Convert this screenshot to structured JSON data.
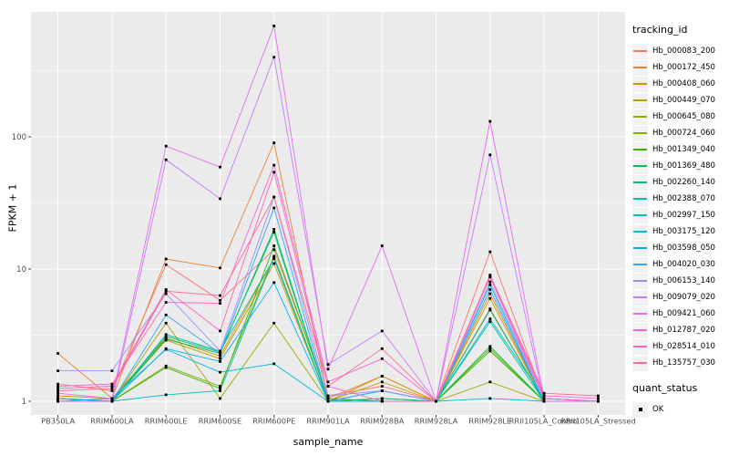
{
  "chart_data": {
    "type": "line",
    "title": "",
    "xlabel": "sample_name",
    "ylabel": "FPKM + 1",
    "y_scale": "log10",
    "y_ticks": [
      1,
      10,
      100
    ],
    "y_tick_labels": [
      "1",
      "10",
      "100"
    ],
    "y_minor_ticks": [
      3.1623,
      31.623,
      316.23
    ],
    "ylim": [
      0.8,
      868
    ],
    "grid": "on",
    "legend_position": "right",
    "point_marker": "square",
    "point_color": "#000000",
    "categories": [
      "PB350LA",
      "RRIM600LA",
      "RRIM600LE",
      "RRIM600SE",
      "RRIM600PE",
      "RRIM901LA",
      "RRIM928BA",
      "RRIM928LA",
      "RRIM928LE",
      "RRII105LA_Control",
      "RRII105LA_Stressed"
    ],
    "series": [
      {
        "name": "Hb_000083_200",
        "color": "#F8766D",
        "values": [
          1.35,
          1.2,
          10.8,
          5.8,
          14,
          1.1,
          1.3,
          1.0,
          13.5,
          1.05,
          1.0
        ]
      },
      {
        "name": "Hb_000172_450",
        "color": "#EA8331",
        "values": [
          2.3,
          1.05,
          11.9,
          10.2,
          90,
          1.05,
          1.55,
          1.0,
          5.0,
          1.0,
          1.0
        ]
      },
      {
        "name": "Hb_000408_060",
        "color": "#D89000",
        "values": [
          1.1,
          1.05,
          3.0,
          2.2,
          12,
          1.0,
          1.55,
          1.0,
          6.5,
          1.0,
          1.0
        ]
      },
      {
        "name": "Hb_000449_070",
        "color": "#C09B00",
        "values": [
          1.05,
          1.0,
          2.9,
          2.1,
          11,
          1.0,
          1.4,
          1.0,
          6.0,
          1.0,
          1.0
        ]
      },
      {
        "name": "Hb_000645_080",
        "color": "#A3A500",
        "values": [
          1.0,
          1.0,
          3.9,
          1.05,
          3.9,
          1.0,
          1.0,
          1.0,
          1.4,
          1.0,
          1.0
        ]
      },
      {
        "name": "Hb_000724_060",
        "color": "#7CAE00",
        "values": [
          1.0,
          1.0,
          1.85,
          1.3,
          12.5,
          1.0,
          1.0,
          1.0,
          2.5,
          1.0,
          1.0
        ]
      },
      {
        "name": "Hb_001349_040",
        "color": "#39B600",
        "values": [
          1.0,
          1.0,
          1.8,
          1.25,
          15,
          1.05,
          1.0,
          1.0,
          2.4,
          1.0,
          1.0
        ]
      },
      {
        "name": "Hb_001369_480",
        "color": "#00BB4E",
        "values": [
          1.05,
          1.0,
          2.95,
          2.3,
          20,
          1.0,
          1.05,
          1.0,
          2.6,
          1.0,
          1.0
        ]
      },
      {
        "name": "Hb_002260_140",
        "color": "#00BF7D",
        "values": [
          1.0,
          1.0,
          3.1,
          2.35,
          19,
          1.0,
          1.05,
          1.0,
          4.9,
          1.0,
          1.0
        ]
      },
      {
        "name": "Hb_002388_070",
        "color": "#00C1A3",
        "values": [
          1.05,
          1.0,
          3.2,
          2.4,
          12,
          1.0,
          1.0,
          1.0,
          4.0,
          1.0,
          1.0
        ]
      },
      {
        "name": "Hb_002997_150",
        "color": "#00BFC4",
        "values": [
          1.0,
          1.0,
          1.12,
          1.2,
          12.2,
          1.0,
          1.0,
          1.0,
          4.2,
          1.05,
          1.0
        ]
      },
      {
        "name": "Hb_003175_120",
        "color": "#00BAE0",
        "values": [
          1.0,
          1.05,
          2.47,
          1.66,
          1.92,
          1.0,
          1.0,
          1.0,
          1.05,
          1.0,
          1.0
        ]
      },
      {
        "name": "Hb_003598_050",
        "color": "#00B0F6",
        "values": [
          1.05,
          1.0,
          2.5,
          2.0,
          7.9,
          1.0,
          1.2,
          1.0,
          7.6,
          1.0,
          1.0
        ]
      },
      {
        "name": "Hb_004020_030",
        "color": "#35A2FF",
        "values": [
          1.0,
          1.0,
          4.5,
          2.3,
          29,
          1.0,
          1.2,
          1.0,
          7.0,
          1.0,
          1.0
        ]
      },
      {
        "name": "Hb_006153_140",
        "color": "#9590FF",
        "values": [
          1.7,
          1.7,
          6.5,
          2.4,
          35,
          1.1,
          1.2,
          1.0,
          8.0,
          1.05,
          1.0
        ]
      },
      {
        "name": "Hb_009079_020",
        "color": "#C77CFF",
        "values": [
          1.0,
          1.0,
          67,
          34,
          400,
          1.9,
          3.4,
          1.0,
          73,
          1.0,
          1.0
        ]
      },
      {
        "name": "Hb_009421_060",
        "color": "#E76BF3",
        "values": [
          1.15,
          1.05,
          85,
          59,
          690,
          1.75,
          15,
          1.0,
          131,
          1.05,
          1.0
        ]
      },
      {
        "name": "Hb_012787_020",
        "color": "#FA62DB",
        "values": [
          1.3,
          1.35,
          5.6,
          5.5,
          61,
          1.4,
          2.1,
          1.0,
          8.9,
          1.1,
          1.05
        ]
      },
      {
        "name": "Hb_028514_010",
        "color": "#FF62BC",
        "values": [
          1.25,
          1.3,
          7.0,
          3.4,
          54,
          1.3,
          1.0,
          1.0,
          8.7,
          1.05,
          1.0
        ]
      },
      {
        "name": "Hb_135757_030",
        "color": "#FF6A98",
        "values": [
          1.2,
          1.25,
          6.8,
          6.3,
          35,
          1.3,
          2.5,
          1.0,
          9.0,
          1.15,
          1.1
        ]
      }
    ],
    "legend": {
      "color_title": "tracking_id",
      "shape_title": "quant_status",
      "shape_items": [
        {
          "label": "OK",
          "marker": "black-square"
        }
      ]
    }
  },
  "theme": {
    "panel_bg": "#EBEBEB",
    "grid_major": "#FFFFFF",
    "grid_minor": "#FFFFFF",
    "legend_key_bg": "#F2F2F2",
    "tick_label_color": "#4D4D4D",
    "tick_mark_color": "#333333",
    "axis_title_color": "#000000",
    "background": "#FFFFFF"
  }
}
